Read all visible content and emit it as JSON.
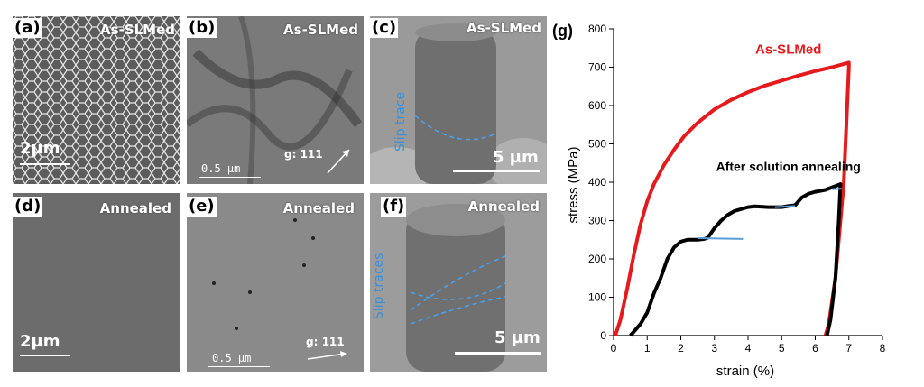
{
  "panels": {
    "a": {
      "label": "(a)",
      "tag": "As-SLMed",
      "scale": "2µm"
    },
    "b": {
      "label": "(b)",
      "tag": "As-SLMed",
      "scale": "0.5 µm",
      "gvector": "g: 111"
    },
    "c": {
      "label": "(c)",
      "tag": "As-SLMed",
      "scale": "5 µm",
      "annotation": "Slip trace"
    },
    "d": {
      "label": "(d)",
      "tag": "Annealed",
      "scale": "2µm"
    },
    "e": {
      "label": "(e)",
      "tag": "Annealed",
      "scale": "0.5 µm",
      "gvector": "g: 111"
    },
    "f": {
      "label": "(f)",
      "tag": "Annealed",
      "scale": "5 µm",
      "annotation": "Slip traces"
    }
  },
  "chart_label": "(g)",
  "chart_data": {
    "type": "line",
    "xlabel": "strain (%)",
    "ylabel": "stress (MPa)",
    "xlim": [
      0,
      8
    ],
    "ylim": [
      0,
      800
    ],
    "xticks": [
      "0",
      "1",
      "2",
      "3",
      "4",
      "5",
      "6",
      "7",
      "8"
    ],
    "yticks": [
      "0",
      "100",
      "200",
      "300",
      "400",
      "500",
      "600",
      "700",
      "800"
    ],
    "grid": false,
    "annotations": [
      "As-SLMed",
      "After solution annealing"
    ],
    "series": [
      {
        "name": "As-SLMed",
        "color": "#e41a1c",
        "x": [
          0.05,
          0.2,
          0.4,
          0.6,
          0.8,
          1.0,
          1.2,
          1.5,
          1.8,
          2.1,
          2.5,
          3.0,
          3.5,
          4.0,
          4.5,
          5.0,
          5.5,
          6.0,
          6.5,
          7.0,
          7.0,
          6.85,
          6.6,
          6.4,
          6.3
        ],
        "y": [
          0,
          40,
          120,
          210,
          290,
          350,
          395,
          445,
          485,
          520,
          555,
          590,
          615,
          635,
          652,
          665,
          678,
          690,
          700,
          712,
          700,
          400,
          150,
          30,
          0
        ]
      },
      {
        "name": "After solution annealing",
        "color": "#000000",
        "x": [
          0.5,
          0.6,
          0.8,
          1.0,
          1.2,
          1.4,
          1.6,
          1.8,
          2.0,
          2.2,
          2.5,
          2.7,
          2.8,
          3.0,
          3.2,
          3.4,
          3.6,
          3.8,
          4.0,
          4.2,
          4.6,
          5.0,
          5.2,
          5.4,
          5.6,
          5.8,
          6.0,
          6.3,
          6.6,
          6.75,
          6.7,
          6.6,
          6.45,
          6.35
        ],
        "y": [
          0,
          10,
          30,
          60,
          110,
          150,
          200,
          230,
          245,
          250,
          250,
          252,
          255,
          280,
          300,
          315,
          325,
          330,
          335,
          337,
          335,
          335,
          338,
          340,
          360,
          370,
          375,
          380,
          390,
          395,
          300,
          150,
          40,
          0
        ]
      }
    ],
    "fit_segments": [
      {
        "x": [
          2.5,
          3.85
        ],
        "y": [
          254,
          252
        ]
      },
      {
        "x": [
          4.8,
          5.4
        ],
        "y": [
          335,
          338
        ]
      },
      {
        "x": [
          6.5,
          6.8
        ],
        "y": [
          382,
          383
        ]
      }
    ]
  }
}
